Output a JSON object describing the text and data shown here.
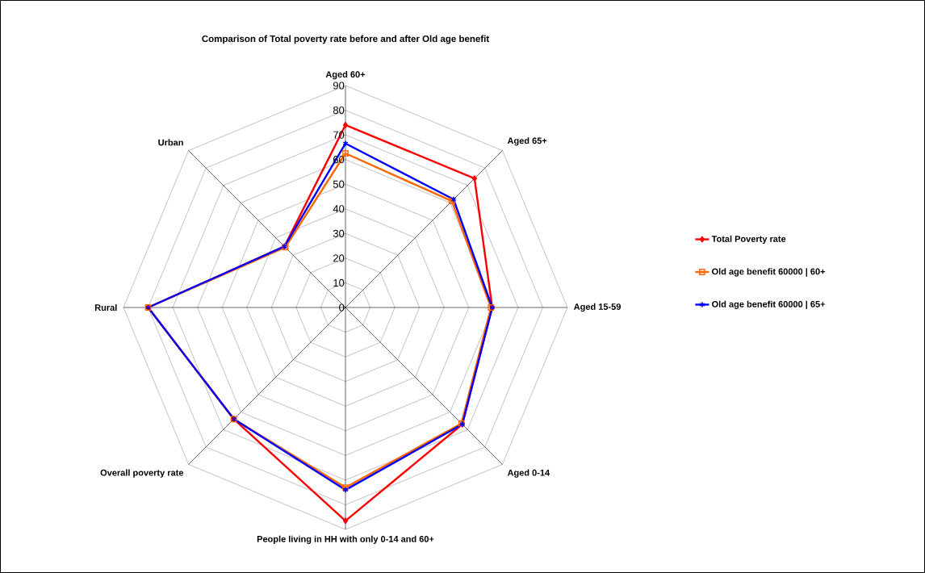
{
  "chart_data": {
    "type": "radar",
    "title": "Comparison of Total poverty rate before and after Old age benefit",
    "categories": [
      "Aged 60+",
      "Aged 65+",
      "Aged 15-59",
      "Aged 0-14",
      "People living in HH with only 0-14 and 60+",
      "Overall poverty rate",
      "Rural",
      "Urban"
    ],
    "ylim": [
      0,
      90
    ],
    "yticks": [
      0,
      10,
      20,
      30,
      40,
      50,
      60,
      70,
      80,
      90
    ],
    "grid": true,
    "legend": "right",
    "series": [
      {
        "name": "Total Poverty rate",
        "color": "#ff0000",
        "marker": "diamond",
        "values": [
          74,
          74,
          59.5,
          67,
          86.5,
          64,
          80,
          35
        ]
      },
      {
        "name": "Old age benefit 60000 | 60+",
        "color": "#ff6600",
        "marker": "square",
        "values": [
          62.5,
          61,
          59,
          66.5,
          73,
          64,
          80,
          34.5
        ]
      },
      {
        "name": "Old age benefit 60000 | 65+",
        "color": "#0000ff",
        "marker": "star",
        "values": [
          66.5,
          62,
          59.5,
          67,
          74,
          64,
          80,
          35
        ]
      }
    ]
  }
}
